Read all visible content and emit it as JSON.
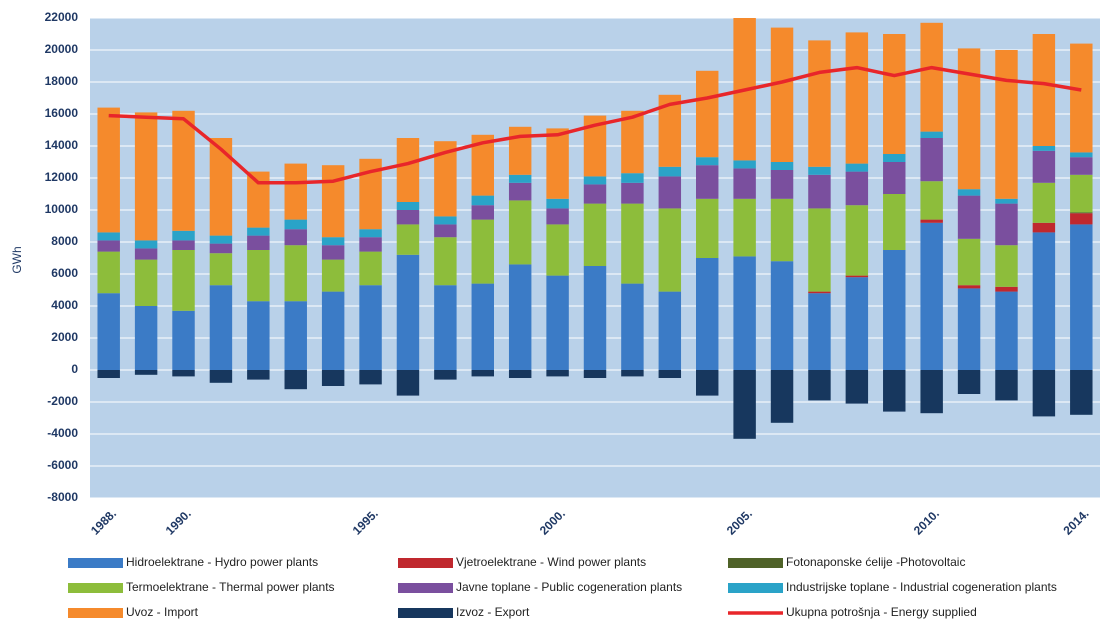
{
  "chart_data": {
    "type": "bar",
    "stacked": true,
    "y_label": "GWh",
    "categories": [
      "1988.",
      null,
      "1990.",
      null,
      null,
      null,
      null,
      "1995.",
      null,
      null,
      null,
      null,
      "2000.",
      null,
      null,
      null,
      null,
      "2005.",
      null,
      null,
      null,
      null,
      "2010.",
      null,
      null,
      null,
      "2014."
    ],
    "ylim": [
      -8000,
      22000
    ],
    "yticks": [
      -8000,
      -6000,
      -4000,
      -2000,
      0,
      2000,
      4000,
      6000,
      8000,
      10000,
      12000,
      14000,
      16000,
      18000,
      20000,
      22000
    ],
    "series": [
      {
        "name": "Hidroelektrane - Hydro power plants",
        "color": "#3b7bc6",
        "values": [
          4800,
          4000,
          3700,
          5300,
          4300,
          4300,
          4900,
          5300,
          7200,
          5300,
          5400,
          6600,
          5900,
          6500,
          5400,
          4900,
          7000,
          7100,
          6800,
          4800,
          5800,
          7500,
          9200,
          5100,
          4900,
          8600,
          9100
        ]
      },
      {
        "name": "Vjetroelektrane  - Wind power plants",
        "color": "#c0282e",
        "values": [
          0,
          0,
          0,
          0,
          0,
          0,
          0,
          0,
          0,
          0,
          0,
          0,
          0,
          0,
          0,
          0,
          0,
          0,
          0,
          100,
          100,
          0,
          200,
          200,
          300,
          600,
          700
        ]
      },
      {
        "name": "Fotonaponske ćelije -Photovoltaic",
        "color": "#4f6228",
        "values": [
          0,
          0,
          0,
          0,
          0,
          0,
          0,
          0,
          0,
          0,
          0,
          0,
          0,
          0,
          0,
          0,
          0,
          0,
          0,
          0,
          0,
          0,
          0,
          0,
          0,
          0,
          50
        ]
      },
      {
        "name": "Termoelektrane  - Thermal power plants",
        "color": "#8dbd3b",
        "values": [
          2600,
          2900,
          3800,
          2000,
          3200,
          3500,
          2000,
          2100,
          1900,
          3000,
          4000,
          4000,
          3200,
          3900,
          5000,
          5200,
          3700,
          3600,
          3900,
          5200,
          4400,
          3500,
          2400,
          2900,
          2600,
          2500,
          2350
        ]
      },
      {
        "name": "Javne toplane - Public cogeneration plants",
        "color": "#7a4f9e",
        "values": [
          700,
          700,
          600,
          600,
          900,
          1000,
          900,
          900,
          900,
          800,
          900,
          1100,
          1000,
          1200,
          1300,
          2000,
          2100,
          1900,
          1800,
          2100,
          2100,
          2000,
          2700,
          2700,
          2600,
          2000,
          1100
        ]
      },
      {
        "name": "Industrijske toplane - Industrial cogeneration plants",
        "color": "#2aa3c8",
        "values": [
          500,
          500,
          600,
          500,
          500,
          600,
          500,
          500,
          500,
          500,
          600,
          500,
          600,
          500,
          600,
          600,
          500,
          500,
          500,
          500,
          500,
          500,
          400,
          400,
          300,
          300,
          300
        ]
      },
      {
        "name": "Uvoz - Import",
        "color": "#f58a2c",
        "values": [
          7800,
          8000,
          7500,
          6100,
          3500,
          3500,
          4500,
          4400,
          4000,
          4700,
          3800,
          3000,
          4400,
          3800,
          3900,
          4500,
          5400,
          8900,
          8400,
          7900,
          8200,
          7500,
          6800,
          8800,
          9300,
          7000,
          6800
        ]
      },
      {
        "name": "Izvoz - Export",
        "color": "#17375e",
        "values": [
          -500,
          -300,
          -400,
          -800,
          -600,
          -1200,
          -1000,
          -900,
          -1600,
          -600,
          -400,
          -500,
          -400,
          -500,
          -400,
          -500,
          -1600,
          -4300,
          -3300,
          -1900,
          -2100,
          -2600,
          -2700,
          -1500,
          -1900,
          -2900,
          -2800
        ]
      },
      {
        "name": "Ukupna potrošnja - Energy supplied",
        "color": "#e8262a",
        "type": "line",
        "values": [
          15900,
          15800,
          15700,
          13800,
          11700,
          11700,
          11800,
          12400,
          12900,
          13600,
          14200,
          14600,
          14700,
          15300,
          15800,
          16600,
          17000,
          17500,
          18000,
          18600,
          18900,
          18400,
          18900,
          18500,
          18100,
          17900,
          17500
        ]
      }
    ]
  }
}
